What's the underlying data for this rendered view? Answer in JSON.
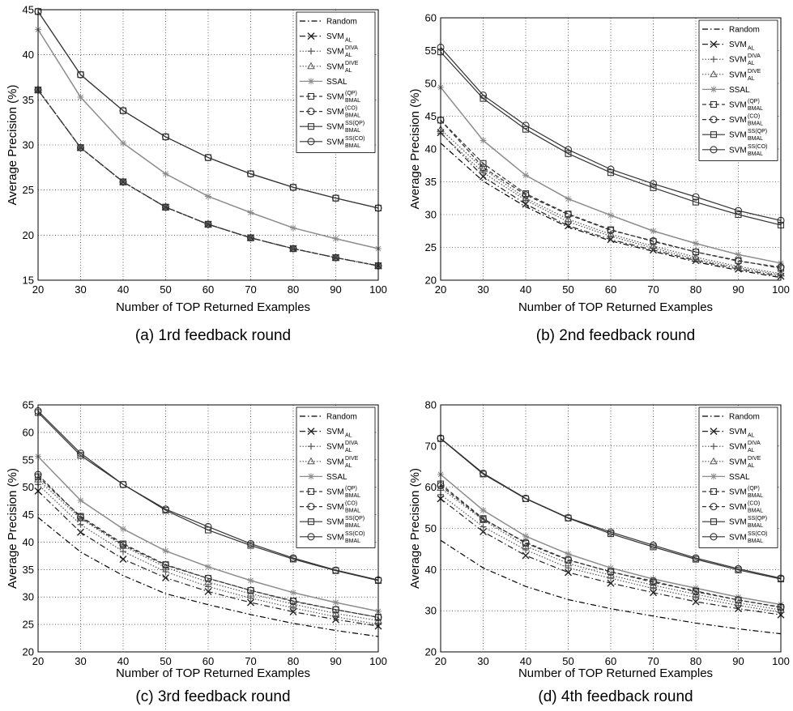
{
  "styles": [
    {
      "color": "#000000",
      "dash": "7 3 1.5 3",
      "marker": "none"
    },
    {
      "color": "#222222",
      "dash": "7 3 1.5 3",
      "marker": "x"
    },
    {
      "color": "#555555",
      "dash": "1.5 2",
      "marker": "plus"
    },
    {
      "color": "#555555",
      "dash": "1.5 2",
      "marker": "triangle"
    },
    {
      "color": "#8c8c8c",
      "dash": "",
      "marker": "star"
    },
    {
      "color": "#333333",
      "dash": "5 3",
      "marker": "square"
    },
    {
      "color": "#333333",
      "dash": "5 3",
      "marker": "circle"
    },
    {
      "color": "#333333",
      "dash": "",
      "marker": "square"
    },
    {
      "color": "#333333",
      "dash": "",
      "marker": "circle"
    }
  ],
  "legend": [
    {
      "main": "Random",
      "sub": "",
      "sup": ""
    },
    {
      "main": "SVM",
      "sub": "AL",
      "sup": ""
    },
    {
      "main": "SVM",
      "sub": "AL",
      "sup": "DIVA"
    },
    {
      "main": "SVM",
      "sub": "AL",
      "sup": "DIVE"
    },
    {
      "main": "SSAL",
      "sub": "",
      "sup": ""
    },
    {
      "main": "SVM",
      "sub": "BMAL",
      "sup": "(QP)"
    },
    {
      "main": "SVM",
      "sub": "BMAL",
      "sup": "(CO)"
    },
    {
      "main": "SVM",
      "sub": "BMAL",
      "sup": "SS(QP)"
    },
    {
      "main": "SVM",
      "sub": "BMAL",
      "sup": "SS(CO)"
    }
  ],
  "chart_data": [
    {
      "type": "line",
      "caption": "(a) 1rd feedback round",
      "xlabel": "Number of TOP Returned Examples",
      "ylabel": "Average Precision (%)",
      "legend_position": "top-right",
      "grid": true,
      "x": [
        20,
        30,
        40,
        50,
        60,
        70,
        80,
        90,
        100
      ],
      "xlim": [
        20,
        100
      ],
      "ylim": [
        15,
        45
      ],
      "yticks": [
        15,
        20,
        25,
        30,
        35,
        40,
        45
      ],
      "xticks": [
        20,
        30,
        40,
        50,
        60,
        70,
        80,
        90,
        100
      ],
      "series": [
        {
          "name": "Random",
          "values": [
            36.1,
            29.7,
            25.9,
            23.1,
            21.2,
            19.7,
            18.5,
            17.5,
            16.6
          ]
        },
        {
          "name": "SVM_AL",
          "values": [
            36.1,
            29.7,
            25.9,
            23.1,
            21.2,
            19.7,
            18.5,
            17.5,
            16.6
          ]
        },
        {
          "name": "SVM_AL^DIVA",
          "values": [
            36.1,
            29.7,
            25.9,
            23.1,
            21.2,
            19.7,
            18.5,
            17.5,
            16.6
          ]
        },
        {
          "name": "SVM_AL^DIVE",
          "values": [
            36.1,
            29.7,
            25.9,
            23.1,
            21.2,
            19.7,
            18.5,
            17.5,
            16.6
          ]
        },
        {
          "name": "SSAL",
          "values": [
            42.8,
            35.3,
            30.2,
            26.8,
            24.3,
            22.5,
            20.8,
            19.6,
            18.5
          ]
        },
        {
          "name": "SVM_BMAL^(QP)",
          "values": [
            36.1,
            29.7,
            25.9,
            23.1,
            21.2,
            19.7,
            18.5,
            17.5,
            16.6
          ]
        },
        {
          "name": "SVM_BMAL^(CO)",
          "values": [
            36.1,
            29.7,
            25.9,
            23.1,
            21.2,
            19.7,
            18.5,
            17.5,
            16.6
          ]
        },
        {
          "name": "SVM_BMAL^SS(QP)",
          "values": [
            44.8,
            37.8,
            33.8,
            30.9,
            28.6,
            26.8,
            25.3,
            24.1,
            23.0
          ]
        },
        {
          "name": "SVM_BMAL^SS(CO)",
          "values": [
            44.8,
            37.8,
            33.8,
            30.9,
            28.6,
            26.8,
            25.3,
            24.1,
            23.0
          ]
        }
      ]
    },
    {
      "type": "line",
      "caption": "(b) 2nd feedback round",
      "xlabel": "Number of TOP Returned Examples",
      "ylabel": "Average Precision (%)",
      "legend_position": "top-right",
      "grid": true,
      "x": [
        20,
        30,
        40,
        50,
        60,
        70,
        80,
        90,
        100
      ],
      "xlim": [
        20,
        100
      ],
      "ylim": [
        20,
        60
      ],
      "yticks": [
        20,
        25,
        30,
        35,
        40,
        45,
        50,
        55,
        60
      ],
      "xticks": [
        20,
        30,
        40,
        50,
        60,
        70,
        80,
        90,
        100
      ],
      "series": [
        {
          "name": "Random",
          "values": [
            40.9,
            35.1,
            31.2,
            28.1,
            26.0,
            24.4,
            22.8,
            21.5,
            20.4
          ]
        },
        {
          "name": "SVM_AL",
          "values": [
            42.5,
            35.8,
            31.6,
            28.3,
            26.2,
            24.6,
            23.0,
            21.7,
            20.6
          ]
        },
        {
          "name": "SVM_AL^DIVA",
          "values": [
            42.4,
            36.4,
            32.2,
            28.9,
            26.7,
            24.9,
            23.2,
            21.9,
            20.8
          ]
        },
        {
          "name": "SVM_AL^DIVE",
          "values": [
            43.0,
            37.0,
            32.5,
            29.3,
            27.0,
            25.2,
            23.5,
            22.1,
            21.0
          ]
        },
        {
          "name": "SSAL",
          "values": [
            49.4,
            41.3,
            36.0,
            32.4,
            29.9,
            27.5,
            25.6,
            23.9,
            22.6
          ]
        },
        {
          "name": "SVM_BMAL^(QP)",
          "values": [
            44.4,
            37.8,
            33.2,
            30.1,
            27.7,
            25.9,
            24.3,
            23.0,
            21.8
          ]
        },
        {
          "name": "SVM_BMAL^(CO)",
          "values": [
            44.4,
            37.2,
            33.0,
            30.0,
            27.6,
            26.0,
            24.3,
            22.9,
            22.0
          ]
        },
        {
          "name": "SVM_BMAL^SS(QP)",
          "values": [
            54.8,
            47.7,
            43.0,
            39.3,
            36.4,
            34.1,
            31.9,
            30.0,
            28.4
          ]
        },
        {
          "name": "SVM_BMAL^SS(CO)",
          "values": [
            55.5,
            48.2,
            43.6,
            39.9,
            36.9,
            34.7,
            32.7,
            30.6,
            29.1
          ]
        }
      ]
    },
    {
      "type": "line",
      "caption": "(c) 3rd feedback round",
      "xlabel": "Number of TOP Returned Examples",
      "ylabel": "Average Precision (%)",
      "legend_position": "top-right",
      "grid": true,
      "x": [
        20,
        30,
        40,
        50,
        60,
        70,
        80,
        90,
        100
      ],
      "xlim": [
        20,
        100
      ],
      "ylim": [
        20,
        65
      ],
      "yticks": [
        20,
        25,
        30,
        35,
        40,
        45,
        50,
        55,
        60,
        65
      ],
      "xticks": [
        20,
        30,
        40,
        50,
        60,
        70,
        80,
        90,
        100
      ],
      "series": [
        {
          "name": "Random",
          "values": [
            44.5,
            38.2,
            33.9,
            30.6,
            28.6,
            26.8,
            25.2,
            23.9,
            22.8
          ]
        },
        {
          "name": "SVM_AL",
          "values": [
            49.3,
            41.8,
            36.9,
            33.5,
            31.0,
            29.0,
            27.3,
            25.9,
            24.7
          ]
        },
        {
          "name": "SVM_AL^DIVA",
          "values": [
            50.5,
            43.2,
            38.3,
            34.6,
            31.9,
            29.8,
            28.0,
            26.4,
            25.0
          ]
        },
        {
          "name": "SVM_AL^DIVE",
          "values": [
            51.4,
            44.3,
            39.3,
            35.4,
            32.7,
            30.6,
            28.7,
            27.0,
            25.7
          ]
        },
        {
          "name": "SSAL",
          "values": [
            55.6,
            47.6,
            42.4,
            38.4,
            35.5,
            33.0,
            30.8,
            29.0,
            27.4
          ]
        },
        {
          "name": "SVM_BMAL^(QP)",
          "values": [
            51.9,
            44.7,
            39.7,
            35.9,
            33.4,
            31.2,
            29.3,
            27.7,
            26.3
          ]
        },
        {
          "name": "SVM_BMAL^(CO)",
          "values": [
            52.3,
            44.5,
            39.5,
            35.8,
            33.4,
            31.2,
            29.2,
            27.7,
            26.3
          ]
        },
        {
          "name": "SVM_BMAL^SS(QP)",
          "values": [
            63.6,
            55.8,
            50.5,
            45.8,
            42.2,
            39.4,
            36.9,
            34.8,
            33.0
          ]
        },
        {
          "name": "SVM_BMAL^SS(CO)",
          "values": [
            63.9,
            56.2,
            50.5,
            46.0,
            42.8,
            39.7,
            37.1,
            34.9,
            33.1
          ]
        }
      ]
    },
    {
      "type": "line",
      "caption": "(d) 4th feedback round",
      "xlabel": "Number of TOP Returned Examples",
      "ylabel": "Average Precision (%)",
      "legend_position": "top-right",
      "grid": true,
      "x": [
        20,
        30,
        40,
        50,
        60,
        70,
        80,
        90,
        100
      ],
      "xlim": [
        20,
        100
      ],
      "ylim": [
        20,
        80
      ],
      "yticks": [
        20,
        30,
        40,
        50,
        60,
        70,
        80
      ],
      "xticks": [
        20,
        30,
        40,
        50,
        60,
        70,
        80,
        90,
        100
      ],
      "series": [
        {
          "name": "Random",
          "values": [
            47.1,
            40.4,
            35.9,
            32.7,
            30.5,
            28.7,
            27.0,
            25.6,
            24.4
          ]
        },
        {
          "name": "SVM_AL",
          "values": [
            57.2,
            49.2,
            43.4,
            39.3,
            36.7,
            34.4,
            32.2,
            30.5,
            29.0
          ]
        },
        {
          "name": "SVM_AL^DIVA",
          "values": [
            58.2,
            50.4,
            44.8,
            40.4,
            37.9,
            35.4,
            33.2,
            31.3,
            29.6
          ]
        },
        {
          "name": "SVM_AL^DIVE",
          "values": [
            59.8,
            52.0,
            45.7,
            41.5,
            38.6,
            36.2,
            34.0,
            31.9,
            30.2
          ]
        },
        {
          "name": "SSAL",
          "values": [
            63.1,
            54.4,
            48.1,
            43.8,
            40.4,
            37.7,
            35.5,
            33.3,
            31.5
          ]
        },
        {
          "name": "SVM_BMAL^(QP)",
          "values": [
            60.8,
            52.4,
            46.4,
            42.3,
            39.5,
            36.9,
            34.8,
            32.6,
            30.8
          ]
        },
        {
          "name": "SVM_BMAL^(CO)",
          "values": [
            60.4,
            52.2,
            46.6,
            42.4,
            39.4,
            37.2,
            34.6,
            32.6,
            30.9
          ]
        },
        {
          "name": "SVM_BMAL^SS(QP)",
          "values": [
            71.8,
            63.2,
            57.2,
            52.5,
            48.7,
            45.5,
            42.5,
            39.9,
            37.7
          ]
        },
        {
          "name": "SVM_BMAL^SS(CO)",
          "values": [
            71.9,
            63.4,
            57.3,
            52.6,
            49.1,
            45.9,
            42.8,
            40.2,
            37.9
          ]
        }
      ]
    }
  ]
}
